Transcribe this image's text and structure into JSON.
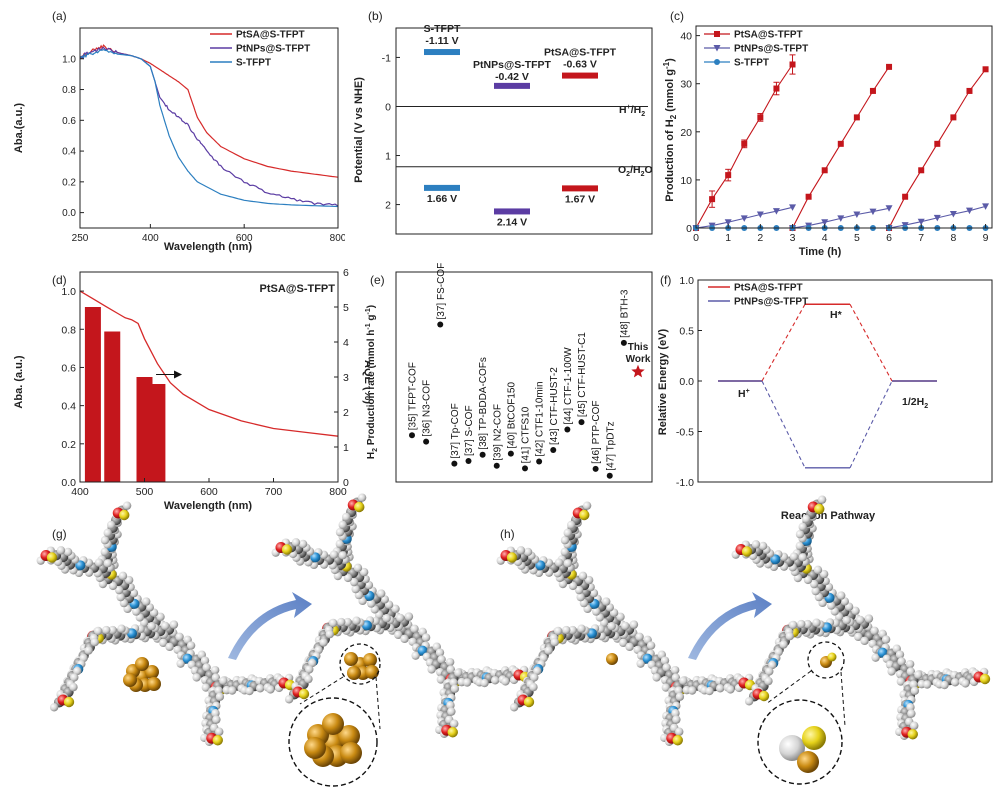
{
  "chart_data": [
    {
      "panel": "(a)",
      "type": "line",
      "xlabel": "Wavelength (nm)",
      "ylabel": "Aba.(a.u.)",
      "xlim": [
        250,
        800
      ],
      "ylim": [
        -0.1,
        1.2
      ],
      "xticks": [
        "250",
        "400",
        "600",
        "800"
      ],
      "xtick_values": [
        250,
        400,
        600,
        800
      ],
      "yticks": [
        "0.0",
        "0.2",
        "0.4",
        "0.6",
        "0.8",
        "1.0"
      ],
      "ytick_values": [
        0.0,
        0.2,
        0.4,
        0.6,
        0.8,
        1.0
      ],
      "legend_position": "top-right",
      "series": [
        {
          "name": "PtSA@S-TFPT",
          "color": "#d62a2a",
          "x": [
            250,
            260,
            280,
            300,
            330,
            360,
            380,
            400,
            420,
            440,
            460,
            480,
            500,
            520,
            550,
            600,
            650,
            700,
            750,
            800
          ],
          "y": [
            1.0,
            1.03,
            1.06,
            1.08,
            1.04,
            1.02,
            1.0,
            0.97,
            0.93,
            0.89,
            0.85,
            0.8,
            0.62,
            0.52,
            0.43,
            0.35,
            0.3,
            0.27,
            0.25,
            0.23
          ]
        },
        {
          "name": "PtNPs@S-TFPT",
          "color": "#5b3ca3",
          "x": [
            250,
            260,
            280,
            300,
            330,
            360,
            380,
            400,
            410,
            420,
            440,
            460,
            480,
            500,
            520,
            550,
            600,
            650,
            700,
            750,
            800
          ],
          "y": [
            1.0,
            1.03,
            1.05,
            1.07,
            1.04,
            1.02,
            1.0,
            0.95,
            0.85,
            0.75,
            0.67,
            0.62,
            0.57,
            0.48,
            0.4,
            0.3,
            0.2,
            0.13,
            0.09,
            0.06,
            0.05
          ]
        },
        {
          "name": "S-TFPT",
          "color": "#2c7fc0",
          "x": [
            250,
            260,
            280,
            300,
            330,
            360,
            380,
            400,
            410,
            420,
            440,
            460,
            480,
            500,
            550,
            600,
            650,
            700,
            750,
            800
          ],
          "y": [
            1.0,
            1.02,
            1.04,
            1.06,
            1.03,
            1.02,
            1.0,
            0.95,
            0.85,
            0.7,
            0.5,
            0.36,
            0.27,
            0.2,
            0.12,
            0.08,
            0.06,
            0.05,
            0.045,
            0.04
          ]
        }
      ]
    },
    {
      "panel": "(b)",
      "type": "diagram",
      "ylabel": "Potential (V vs NHE)",
      "ylim": [
        -1.6,
        2.6
      ],
      "yticks": [
        "-1",
        "0",
        "1",
        "2"
      ],
      "ytick_values": [
        -1,
        0,
        1,
        2
      ],
      "reference_lines": [
        {
          "label": "H+/H2",
          "value": 0
        },
        {
          "label": "O2/H2O",
          "value": 1.23
        }
      ],
      "bands": [
        {
          "material": "S-TFPT",
          "cb": -1.11,
          "cb_label": "-1.11 V",
          "vb": 1.66,
          "vb_label": "1.66 V",
          "color": "#2c7fc0"
        },
        {
          "material": "PtNPs@S-TFPT",
          "cb": -0.42,
          "cb_label": "-0.42 V",
          "vb": 2.14,
          "vb_label": "2.14 V",
          "color": "#5b3ca3"
        },
        {
          "material": "PtSA@S-TFPT",
          "cb": -0.63,
          "cb_label": "-0.63 V",
          "vb": 1.67,
          "vb_label": "1.67 V",
          "color": "#c4161c"
        }
      ]
    },
    {
      "panel": "(c)",
      "type": "line",
      "xlabel": "Time (h)",
      "ylabel": "Production of H2 (mmol g-1)",
      "xlim": [
        0,
        9.2
      ],
      "ylim": [
        0,
        42
      ],
      "xticks": [
        "0",
        "1",
        "2",
        "3",
        "4",
        "5",
        "6",
        "7",
        "8",
        "9"
      ],
      "xtick_values": [
        0,
        1,
        2,
        3,
        4,
        5,
        6,
        7,
        8,
        9
      ],
      "yticks": [
        "0",
        "10",
        "20",
        "30",
        "40"
      ],
      "ytick_values": [
        0,
        10,
        20,
        30,
        40
      ],
      "legend_position": "top-left",
      "series": [
        {
          "name": "PtSA@S-TFPT",
          "color": "#c4161c",
          "marker": "square",
          "segments": [
            {
              "x": [
                0,
                0.5,
                1.0,
                1.5,
                2.0,
                2.5,
                3.0
              ],
              "y": [
                0,
                6,
                11,
                17.5,
                23,
                29,
                34
              ]
            },
            {
              "x": [
                3.0,
                3.5,
                4.0,
                4.5,
                5.0,
                5.5,
                6.0
              ],
              "y": [
                0,
                6.5,
                12,
                17.5,
                23,
                28.5,
                33.5
              ]
            },
            {
              "x": [
                6.0,
                6.5,
                7.0,
                7.5,
                8.0,
                8.5,
                9.0
              ],
              "y": [
                0,
                6.5,
                12,
                17.5,
                23,
                28.5,
                33
              ]
            }
          ]
        },
        {
          "name": "PtNPs@S-TFPT",
          "color": "#5b5ba8",
          "marker": "triangle-down",
          "segments": [
            {
              "x": [
                0,
                0.5,
                1.0,
                1.5,
                2.0,
                2.5,
                3.0
              ],
              "y": [
                0,
                0.5,
                1.2,
                2,
                2.8,
                3.5,
                4.3
              ]
            },
            {
              "x": [
                3.0,
                3.5,
                4.0,
                4.5,
                5.0,
                5.5,
                6.0
              ],
              "y": [
                0,
                0.5,
                1.2,
                2,
                2.8,
                3.4,
                4.1
              ]
            },
            {
              "x": [
                6.0,
                6.5,
                7.0,
                7.5,
                8.0,
                8.5,
                9.0
              ],
              "y": [
                0,
                0.6,
                1.3,
                2.1,
                2.9,
                3.6,
                4.5
              ]
            }
          ]
        },
        {
          "name": "S-TFPT",
          "color": "#2c7fc0",
          "marker": "circle",
          "segments": [
            {
              "x": [
                0,
                0.5,
                1,
                1.5,
                2,
                2.5,
                3,
                3.5,
                4,
                4.5,
                5,
                5.5,
                6,
                6.5,
                7,
                7.5,
                8,
                8.5,
                9
              ],
              "y": [
                0,
                0,
                0,
                0,
                0,
                0,
                0,
                0,
                0,
                0,
                0,
                0,
                0,
                0,
                0,
                0,
                0,
                0,
                0
              ]
            }
          ]
        }
      ]
    },
    {
      "panel": "(d)",
      "type": "bar+line",
      "xlabel": "Wavelength (nm)",
      "ylabel_left": "Aba. (a.u.)",
      "ylabel_right": "AQE (%)",
      "label": "PtSA@S-TFPT",
      "xlim": [
        400,
        800
      ],
      "ylim_left": [
        0,
        1.1
      ],
      "ylim_right": [
        0,
        6
      ],
      "xticks": [
        "400",
        "500",
        "600",
        "700",
        "800"
      ],
      "xtick_values": [
        400,
        500,
        600,
        700,
        800
      ],
      "yticks_left": [
        "0.0",
        "0.2",
        "0.4",
        "0.6",
        "0.8",
        "1.0"
      ],
      "ytick_values_left": [
        0,
        0.2,
        0.4,
        0.6,
        0.8,
        1.0
      ],
      "yticks_right": [
        "0",
        "1",
        "2",
        "3",
        "4",
        "5",
        "6"
      ],
      "ytick_values_right": [
        0,
        1,
        2,
        3,
        4,
        5,
        6
      ],
      "bars": {
        "color": "#c4161c",
        "x": [
          420,
          450,
          500,
          520
        ],
        "values": [
          5.0,
          4.3,
          3.0,
          2.8
        ]
      },
      "line": {
        "color": "#d62a2a",
        "x": [
          400,
          420,
          440,
          460,
          470,
          480,
          490,
          500,
          520,
          540,
          560,
          600,
          650,
          700,
          750,
          800
        ],
        "y": [
          1.0,
          0.96,
          0.92,
          0.88,
          0.86,
          0.85,
          0.83,
          0.75,
          0.62,
          0.52,
          0.46,
          0.38,
          0.32,
          0.28,
          0.26,
          0.24
        ]
      }
    },
    {
      "panel": "(e)",
      "type": "scatter",
      "ylabel": "H2 Production rate (mmol h-1 g-1)",
      "ylim": [
        0,
        40
      ],
      "points": [
        {
          "label": "[35] TFPT-COF",
          "value": 8.9,
          "ref": "[35]",
          "name": "TFPT-COF"
        },
        {
          "label": "[36] N3-COF",
          "value": 7.7,
          "ref": "[36]",
          "name": "N3-COF"
        },
        {
          "label": "[37] FS-COF",
          "value": 30.0,
          "ref": "[37]",
          "name": "FS-COF"
        },
        {
          "label": "[37] Tp-COF",
          "value": 3.5,
          "ref": "[37]",
          "name": "Tp-COF"
        },
        {
          "label": "[37] S-COF",
          "value": 4.0,
          "ref": "[37]",
          "name": "S-COF"
        },
        {
          "label": "[38] TP-BDDA-COFs",
          "value": 5.2,
          "ref": "[38]",
          "name": "TP-BDDA-COFs"
        },
        {
          "label": "[39] N2-COF",
          "value": 3.1,
          "ref": "[39]",
          "name": "N2-COF"
        },
        {
          "label": "[40] BtCOF150",
          "value": 5.4,
          "ref": "[40]",
          "name": "BtCOF150"
        },
        {
          "label": "[41] CTFS10",
          "value": 2.6,
          "ref": "[41]",
          "name": "CTFS10"
        },
        {
          "label": "[42] CTF1-10min",
          "value": 3.9,
          "ref": "[42]",
          "name": "CTF1-10min"
        },
        {
          "label": "[43] CTF-HUST-2",
          "value": 6.1,
          "ref": "[43]",
          "name": "CTF-HUST-2"
        },
        {
          "label": "[44] CTF-1-100W",
          "value": 10.0,
          "ref": "[44]",
          "name": "CTF-1-100W"
        },
        {
          "label": "[45] CTF-HUST-C1",
          "value": 11.4,
          "ref": "[45]",
          "name": "CTF-HUST-C1"
        },
        {
          "label": "[46] PTP-COF",
          "value": 2.5,
          "ref": "[46]",
          "name": "PTP-COF"
        },
        {
          "label": "[47] TpDTz",
          "value": 1.2,
          "ref": "[47]",
          "name": "TpDTz"
        },
        {
          "label": "[48] BTH-3",
          "value": 26.5,
          "ref": "[48]",
          "name": "BTH-3"
        },
        {
          "label": "This Work",
          "value": 21.0,
          "ref": "",
          "name": "This Work",
          "highlight": true,
          "color": "#c4161c"
        }
      ]
    },
    {
      "panel": "(f)",
      "type": "line",
      "ylabel": "Relative Energy (eV)",
      "ylim": [
        -1.0,
        1.0
      ],
      "yticks": [
        "-1.0",
        "-0.5",
        "0.0",
        "0.5",
        "1.0"
      ],
      "ytick_values": [
        -1.0,
        -0.5,
        0.0,
        0.5,
        1.0
      ],
      "legend_position": "top-left",
      "states": [
        "H+",
        "H*",
        "1/2H2"
      ],
      "series": [
        {
          "name": "PtSA@S-TFPT",
          "color": "#d62a2a",
          "values": [
            0,
            0.76,
            0
          ]
        },
        {
          "name": "PtNPs@S-TFPT",
          "color": "#5b5ba8",
          "values": [
            0,
            -0.86,
            0
          ]
        }
      ]
    }
  ],
  "panel_labels": {
    "a": "(a)",
    "b": "(b)",
    "c": "(c)",
    "d": "(d)",
    "e": "(e)",
    "f": "(f)",
    "g": "(g)",
    "h": "(h)"
  },
  "panel_b": {
    "s_tfpt_name": "S-TFPT",
    "ptnps_name": "PtNPs@S-TFPT",
    "ptsa_name": "PtSA@S-TFPT",
    "h_ref_main": "H",
    "h_ref_sup": "+",
    "h_ref_tail": "/H",
    "h_ref_sub": "2",
    "o_ref_main": "O",
    "o_ref_sub": "2",
    "o_ref_tail": "/H",
    "o_ref_sub2": "2",
    "o_ref_end": "O"
  },
  "panel_c_axis": {
    "ylabel_main": "Production of H",
    "ylabel_sub": "2",
    "ylabel_tail": " (mmol g",
    "ylabel_sup": "-1",
    "ylabel_end": ")"
  },
  "panel_e_axis": {
    "ylabel_h": "H",
    "ylabel_sub": "2",
    "ylabel_mid": " Production rate (mmol h",
    "ylabel_sup1": "-1",
    "ylabel_g": " g",
    "ylabel_sup2": "-1",
    "ylabel_end": ")",
    "this_work_1": "This",
    "this_work_2": "Work"
  },
  "panel_f_labels": {
    "h_plus_main": "H",
    "h_plus_sup": "+",
    "h_star": "H*",
    "half_h2_main": "1/2H",
    "half_h2_sub": "2"
  },
  "panel_h_title": "Reaction Pathway"
}
